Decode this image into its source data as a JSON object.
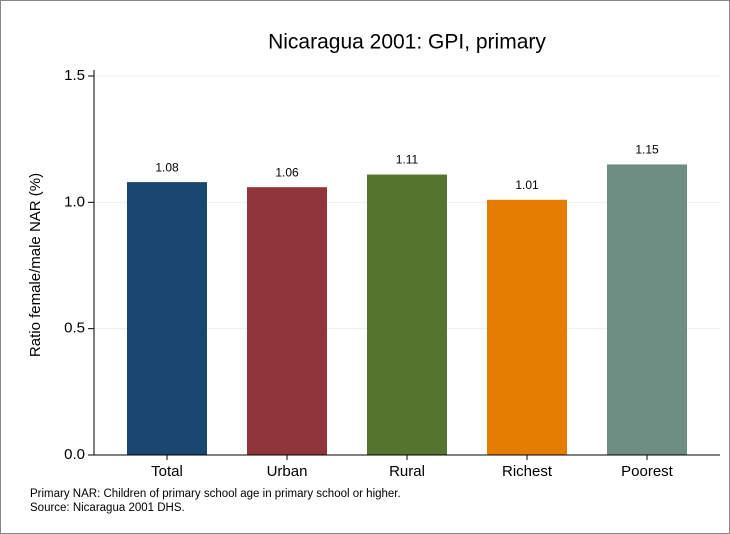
{
  "chart_data": {
    "type": "bar",
    "title": "Nicaragua 2001: GPI, primary",
    "y_label": "Ratio female/male NAR (%)",
    "categories": [
      "Total",
      "Urban",
      "Rural",
      "Richest",
      "Poorest"
    ],
    "values": [
      1.08,
      1.06,
      1.11,
      1.01,
      1.15
    ],
    "colors": [
      "#1a476f",
      "#90353b",
      "#55752f",
      "#e37e00",
      "#6e8e84"
    ],
    "ylim": [
      0,
      1.5
    ],
    "yticks": [
      {
        "value": 0,
        "label": "0.0"
      },
      0.5,
      {
        "value": 1,
        "label": "1.0"
      },
      1.5
    ],
    "grid": true,
    "notes": [
      "Primary NAR: Children of primary school age in primary school or higher.",
      "Source: Nicaragua 2001 DHS."
    ]
  }
}
